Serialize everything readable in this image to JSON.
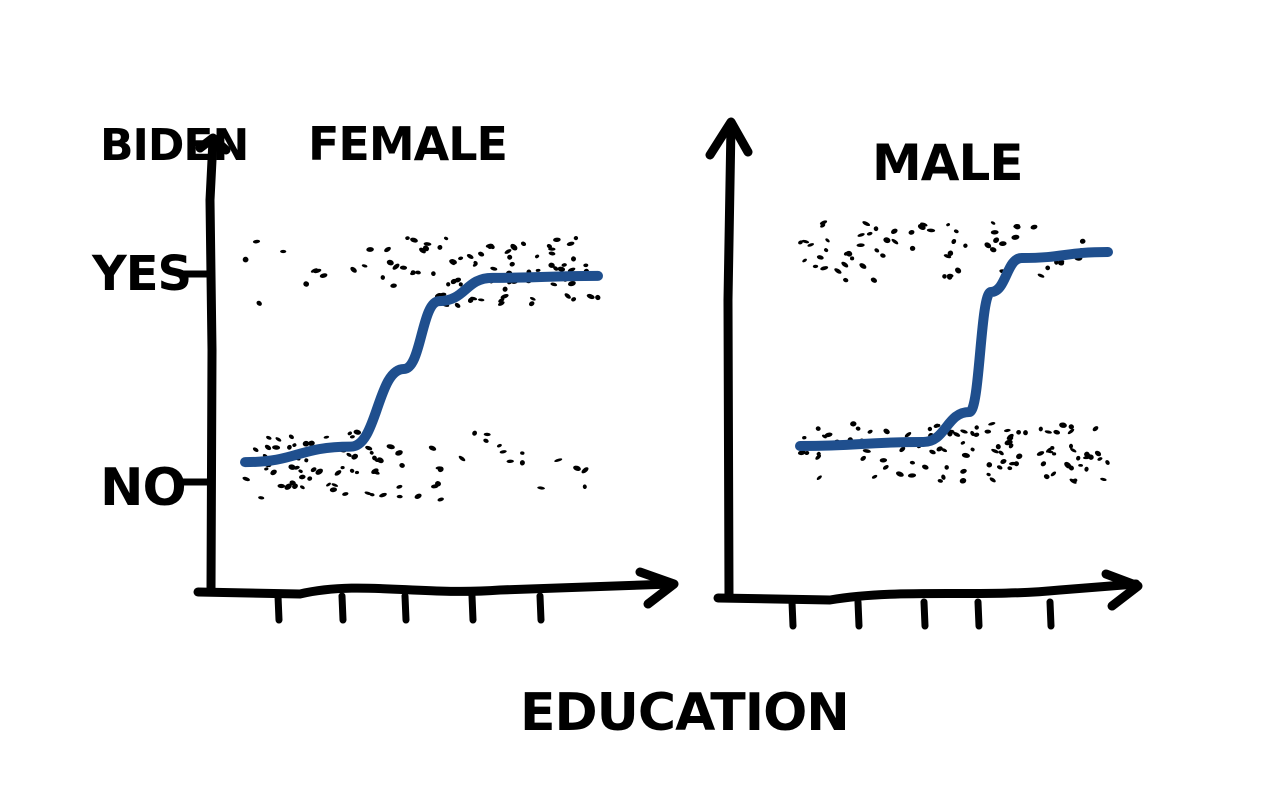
{
  "colors": {
    "curve": "#1f4f8e",
    "ink": "#000000"
  },
  "labels": {
    "y_axis": "BIDEN",
    "y_tick_yes": "YES",
    "y_tick_no": "NO",
    "x_axis": "EDUCATION"
  },
  "chart_data": [
    {
      "type": "scatter",
      "title": "FEMALE",
      "ylabel": "BIDEN",
      "xlabel": "EDUCATION",
      "y_categories": [
        "NO",
        "YES"
      ],
      "x_tick_count": 5,
      "grid": false,
      "series": [
        {
          "kind": "points",
          "group": "YES",
          "density_by_x": [
            0.15,
            0.2,
            0.5,
            0.9,
            1.0,
            0.9
          ]
        },
        {
          "kind": "points",
          "group": "NO",
          "density_by_x": [
            1.0,
            0.95,
            0.6,
            0.3,
            0.25,
            0.2
          ]
        },
        {
          "kind": "logistic_curve",
          "x": [
            0,
            0.3,
            0.45,
            0.55,
            0.7,
            1.0
          ],
          "y": [
            0.02,
            0.1,
            0.5,
            0.85,
            0.97,
            0.98
          ]
        }
      ]
    },
    {
      "type": "scatter",
      "title": "MALE",
      "ylabel": "",
      "xlabel": "EDUCATION",
      "y_categories": [
        "NO",
        "YES"
      ],
      "x_tick_count": 5,
      "grid": false,
      "series": [
        {
          "kind": "points",
          "group": "YES",
          "density_by_x": [
            0.6,
            0.5,
            0.45,
            0.4,
            0.3,
            0.2
          ]
        },
        {
          "kind": "points",
          "group": "NO",
          "density_by_x": [
            0.5,
            0.55,
            0.7,
            0.75,
            0.8,
            0.85
          ]
        },
        {
          "kind": "logistic_curve",
          "x": [
            0,
            0.4,
            0.55,
            0.62,
            0.72,
            1.0
          ],
          "y": [
            0.03,
            0.05,
            0.2,
            0.8,
            0.97,
            1.0
          ]
        }
      ]
    }
  ]
}
